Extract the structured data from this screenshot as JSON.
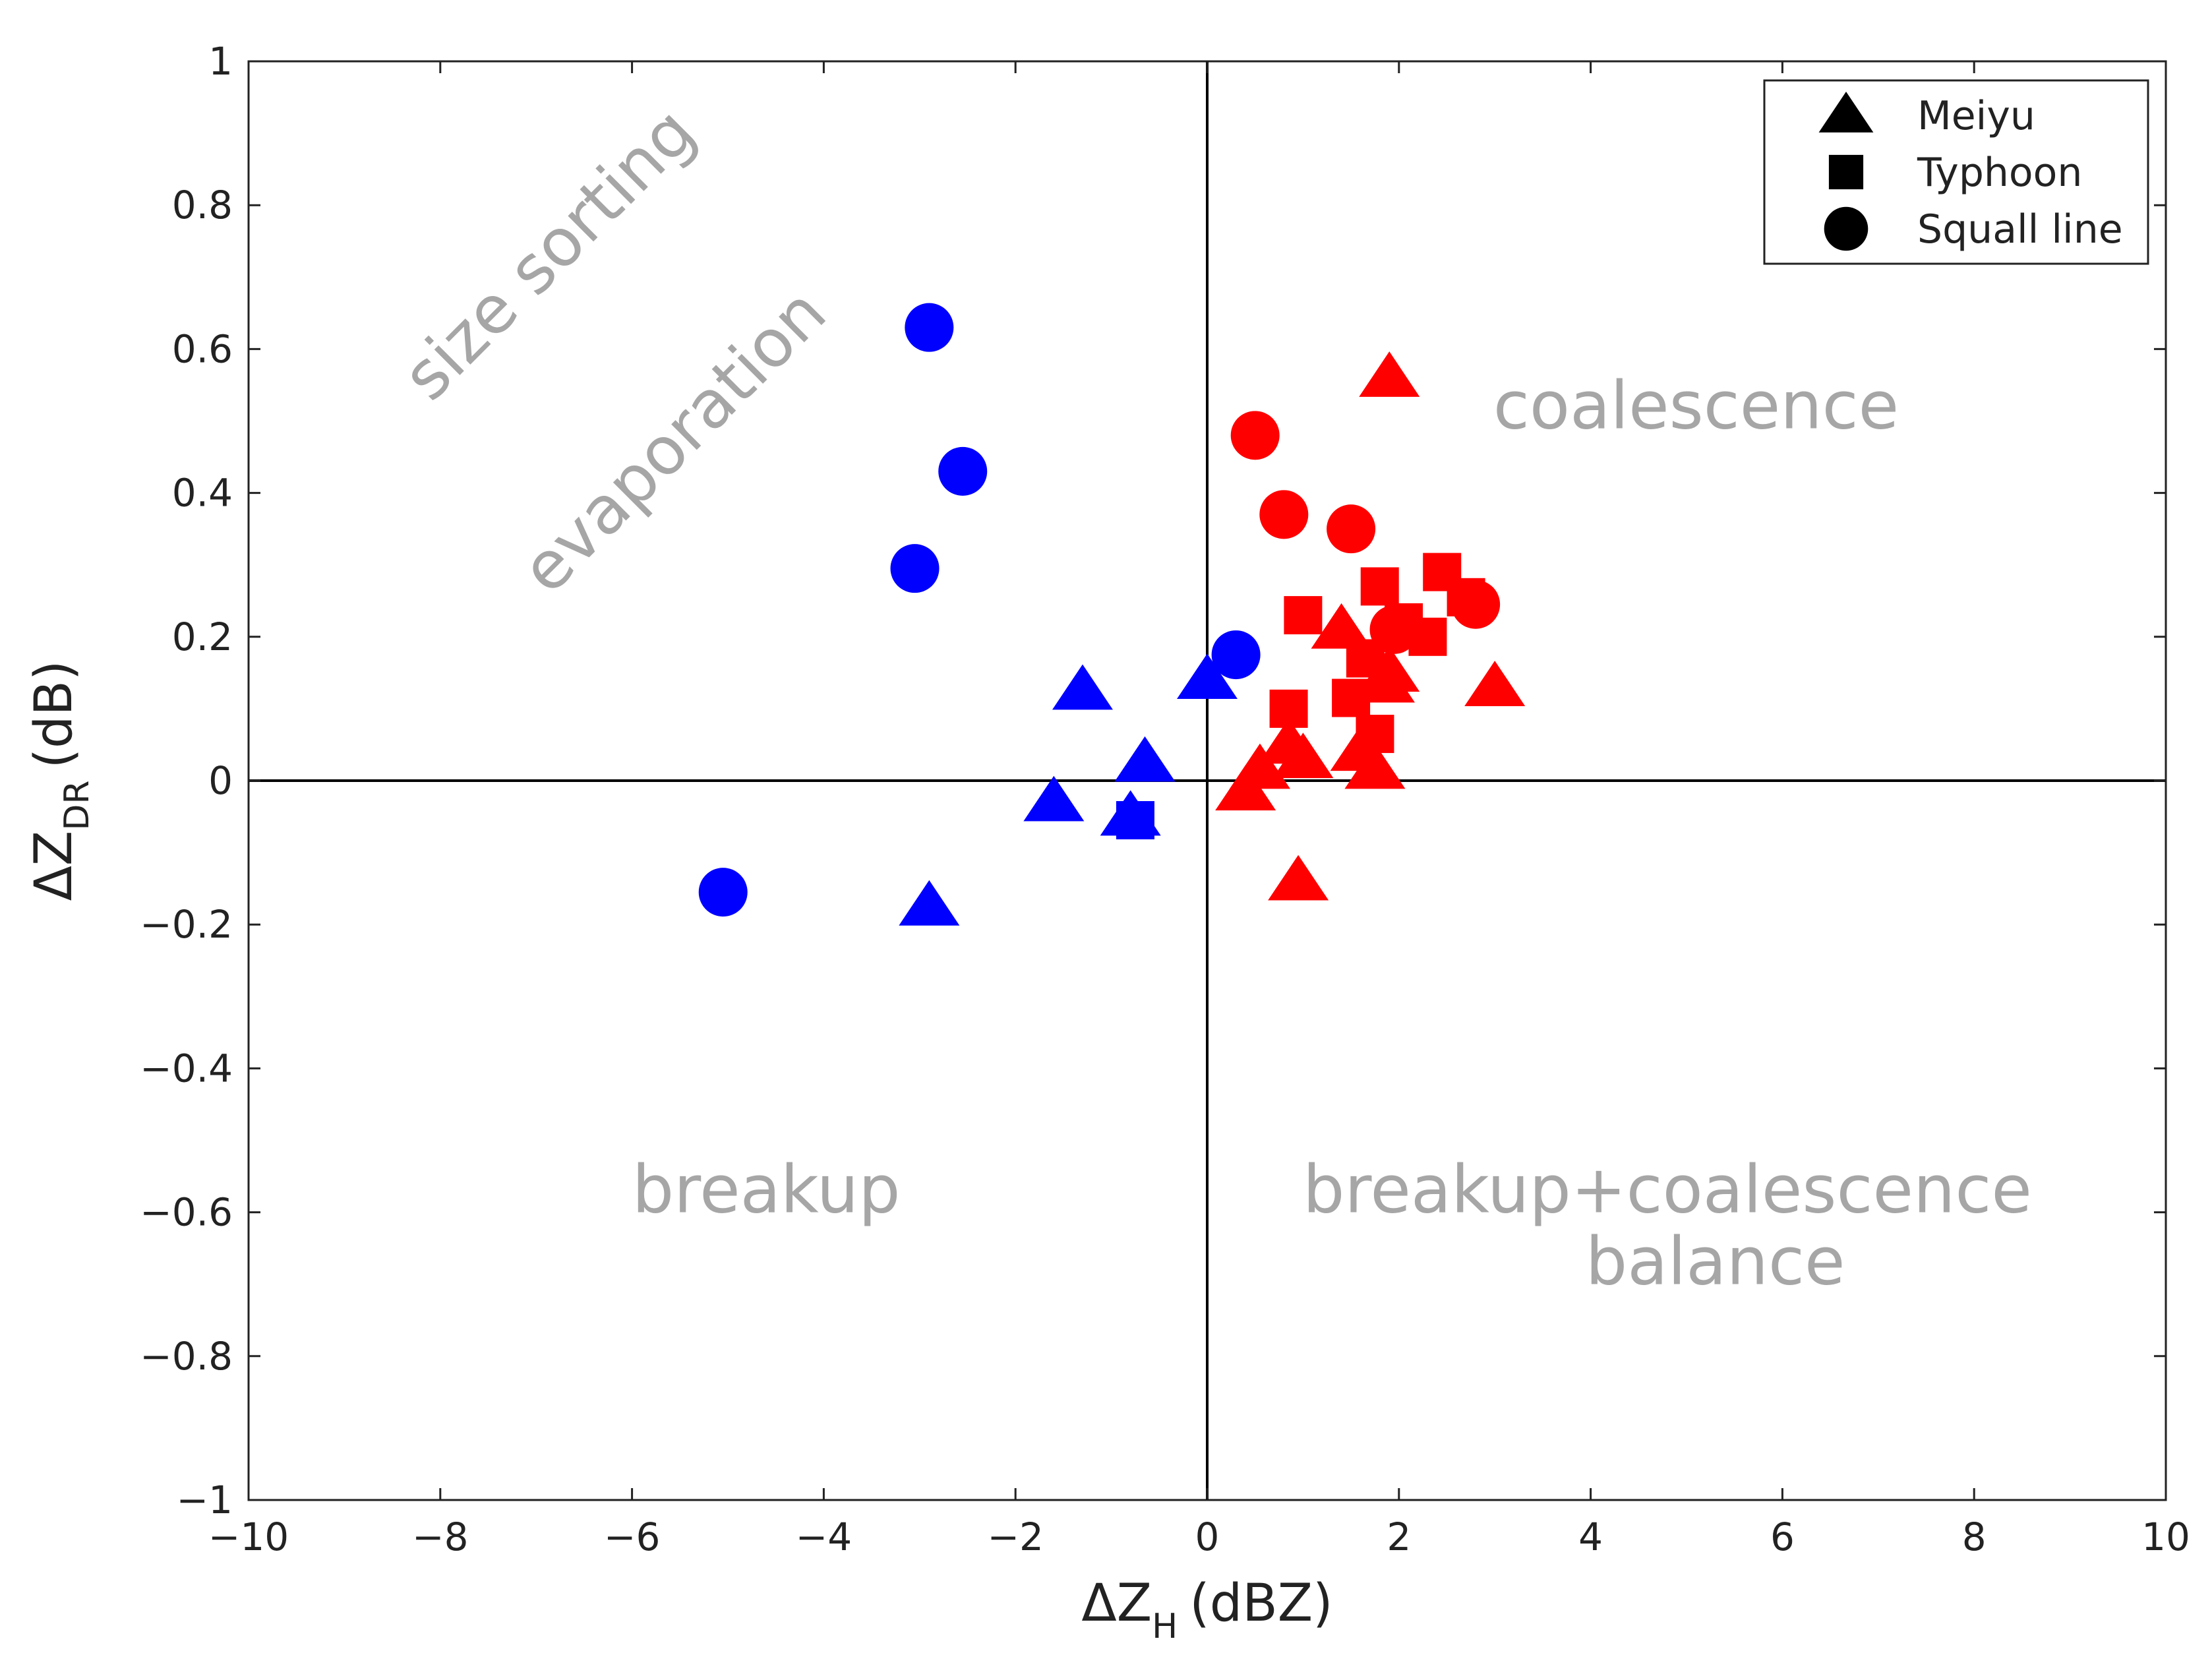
{
  "chart_data": {
    "type": "scatter",
    "title": "",
    "xlabel": {
      "main": "ΔZ",
      "sub": "H",
      "unit": "(dBZ)"
    },
    "ylabel": {
      "main": "ΔZ",
      "sub": "DR",
      "unit": "(dB)"
    },
    "xlim": [
      -10,
      10
    ],
    "ylim": [
      -1,
      1
    ],
    "x_ticks": [
      -10,
      -8,
      -6,
      -4,
      -2,
      0,
      2,
      4,
      6,
      8,
      10
    ],
    "x_tick_labels": [
      "−10",
      "−8",
      "−6",
      "−4",
      "−2",
      "0",
      "2",
      "4",
      "6",
      "8",
      "10"
    ],
    "y_ticks": [
      -1,
      -0.8,
      -0.6,
      -0.4,
      -0.2,
      0,
      0.2,
      0.4,
      0.6,
      0.8,
      1
    ],
    "y_tick_labels": [
      "−1",
      "−0.8",
      "−0.6",
      "−0.4",
      "−0.2",
      "0",
      "0.2",
      "0.4",
      "0.6",
      "0.8",
      "1"
    ],
    "grid": false,
    "reference_lines": {
      "x": 0,
      "y": 0
    },
    "legend": {
      "placement": "top-right",
      "entries": [
        {
          "name": "Meiyu",
          "marker": "triangle"
        },
        {
          "name": "Typhoon",
          "marker": "square"
        },
        {
          "name": "Squall line",
          "marker": "circle"
        }
      ]
    },
    "colors": {
      "negative": "#0000ff",
      "positive": "#ff0000",
      "annotation": "#a6a6a6",
      "legend_marker": "#000000"
    },
    "annotations": [
      {
        "text": "size sorting",
        "x": -6.7,
        "y": 0.71,
        "rotation": -45
      },
      {
        "text": "evaporation",
        "x": -5.4,
        "y": 0.45,
        "rotation": -45
      },
      {
        "text": "coalescence",
        "x": 5.1,
        "y": 0.49,
        "rotation": 0
      },
      {
        "text": "breakup",
        "x": -4.6,
        "y": -0.6,
        "rotation": 0
      },
      {
        "text": "breakup+coalescence",
        "x": 4.8,
        "y": -0.6,
        "rotation": 0
      },
      {
        "text": "balance",
        "x": 5.3,
        "y": -0.7,
        "rotation": 0
      }
    ],
    "series": [
      {
        "name": "Meiyu",
        "marker": "triangle",
        "points": [
          {
            "x": 1.9,
            "y": 0.56,
            "color": "#ff0000"
          },
          {
            "x": 3.0,
            "y": 0.13,
            "color": "#ff0000"
          },
          {
            "x": 1.4,
            "y": 0.21,
            "color": "#ff0000"
          },
          {
            "x": 1.9,
            "y": 0.15,
            "color": "#ff0000"
          },
          {
            "x": 1.85,
            "y": 0.135,
            "color": "#ff0000"
          },
          {
            "x": 0.85,
            "y": 0.05,
            "color": "#ff0000"
          },
          {
            "x": 1.0,
            "y": 0.03,
            "color": "#ff0000"
          },
          {
            "x": 1.6,
            "y": 0.04,
            "color": "#ff0000"
          },
          {
            "x": 1.75,
            "y": 0.015,
            "color": "#ff0000"
          },
          {
            "x": 0.55,
            "y": 0.015,
            "color": "#ff0000"
          },
          {
            "x": 0.4,
            "y": -0.015,
            "color": "#ff0000"
          },
          {
            "x": 0.95,
            "y": -0.14,
            "color": "#ff0000"
          },
          {
            "x": -1.3,
            "y": 0.125,
            "color": "#0000ff"
          },
          {
            "x": 0.0,
            "y": 0.14,
            "color": "#0000ff"
          },
          {
            "x": -0.65,
            "y": 0.025,
            "color": "#0000ff"
          },
          {
            "x": -1.6,
            "y": -0.03,
            "color": "#0000ff"
          },
          {
            "x": -0.8,
            "y": -0.05,
            "color": "#0000ff"
          },
          {
            "x": -2.9,
            "y": -0.175,
            "color": "#0000ff"
          }
        ]
      },
      {
        "name": "Typhoon",
        "marker": "square",
        "points": [
          {
            "x": 2.45,
            "y": 0.29,
            "color": "#ff0000"
          },
          {
            "x": 1.8,
            "y": 0.27,
            "color": "#ff0000"
          },
          {
            "x": 2.7,
            "y": 0.255,
            "color": "#ff0000"
          },
          {
            "x": 1.0,
            "y": 0.23,
            "color": "#ff0000"
          },
          {
            "x": 2.05,
            "y": 0.22,
            "color": "#ff0000"
          },
          {
            "x": 2.3,
            "y": 0.2,
            "color": "#ff0000"
          },
          {
            "x": 1.65,
            "y": 0.17,
            "color": "#ff0000"
          },
          {
            "x": 1.5,
            "y": 0.115,
            "color": "#ff0000"
          },
          {
            "x": 0.85,
            "y": 0.1,
            "color": "#ff0000"
          },
          {
            "x": 1.75,
            "y": 0.065,
            "color": "#ff0000"
          },
          {
            "x": -0.75,
            "y": -0.055,
            "color": "#0000ff"
          }
        ]
      },
      {
        "name": "Squall line",
        "marker": "circle",
        "points": [
          {
            "x": 0.5,
            "y": 0.48,
            "color": "#ff0000"
          },
          {
            "x": 0.8,
            "y": 0.37,
            "color": "#ff0000"
          },
          {
            "x": 1.5,
            "y": 0.35,
            "color": "#ff0000"
          },
          {
            "x": 2.8,
            "y": 0.245,
            "color": "#ff0000"
          },
          {
            "x": 1.95,
            "y": 0.21,
            "color": "#ff0000"
          },
          {
            "x": -2.9,
            "y": 0.63,
            "color": "#0000ff"
          },
          {
            "x": -2.55,
            "y": 0.43,
            "color": "#0000ff"
          },
          {
            "x": -3.05,
            "y": 0.295,
            "color": "#0000ff"
          },
          {
            "x": 0.3,
            "y": 0.175,
            "color": "#0000ff"
          },
          {
            "x": -5.05,
            "y": -0.155,
            "color": "#0000ff"
          }
        ]
      }
    ]
  }
}
